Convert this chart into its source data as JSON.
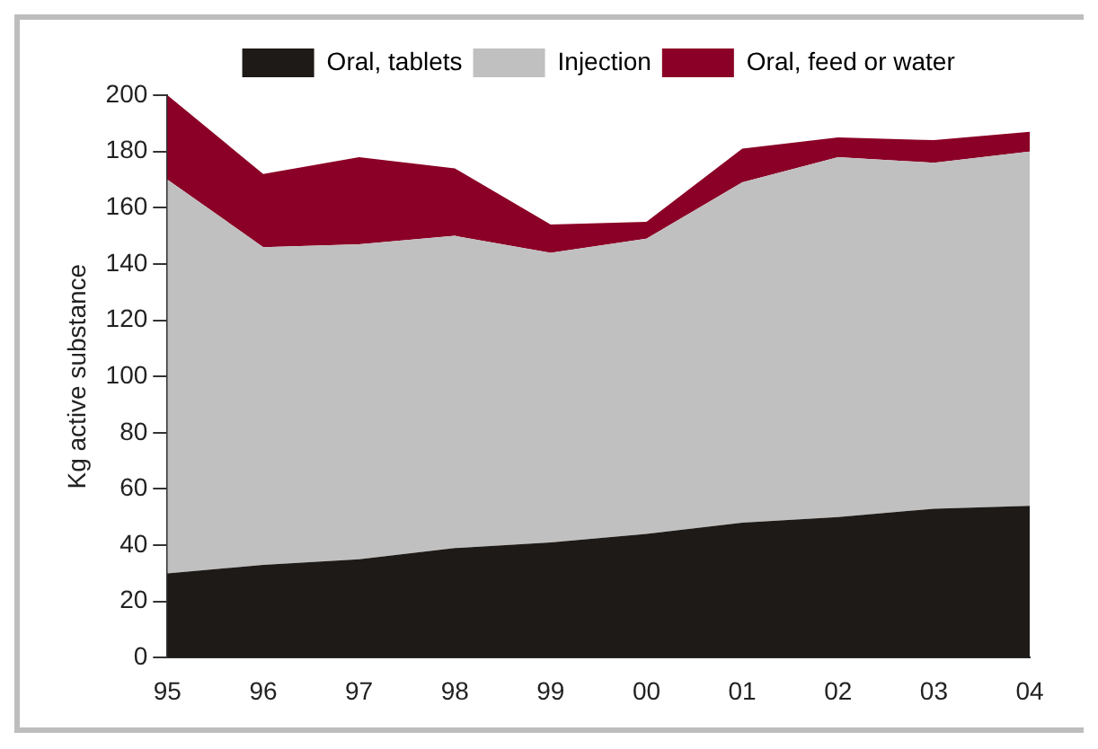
{
  "chart_data": {
    "type": "area",
    "stacked": true,
    "ylabel": "Kg active substance",
    "categories": [
      "95",
      "96",
      "97",
      "98",
      "99",
      "00",
      "01",
      "02",
      "03",
      "04"
    ],
    "series": [
      {
        "name": "Oral, tablets",
        "color": "#1e1a17",
        "values": [
          30,
          33,
          35,
          39,
          41,
          44,
          48,
          50,
          53,
          54
        ]
      },
      {
        "name": "Injection",
        "color": "#c0c0c0",
        "values": [
          140,
          113,
          112,
          111,
          103,
          105,
          121,
          128,
          123,
          126
        ]
      },
      {
        "name": "Oral, feed or water",
        "color": "#8b0026",
        "values": [
          30,
          26,
          31,
          24,
          10,
          6,
          12,
          7,
          8,
          7
        ]
      }
    ],
    "ylim": [
      0,
      200
    ],
    "yticks": [
      0,
      20,
      40,
      60,
      80,
      100,
      120,
      140,
      160,
      180,
      200
    ],
    "grid": false,
    "legend": "top"
  }
}
